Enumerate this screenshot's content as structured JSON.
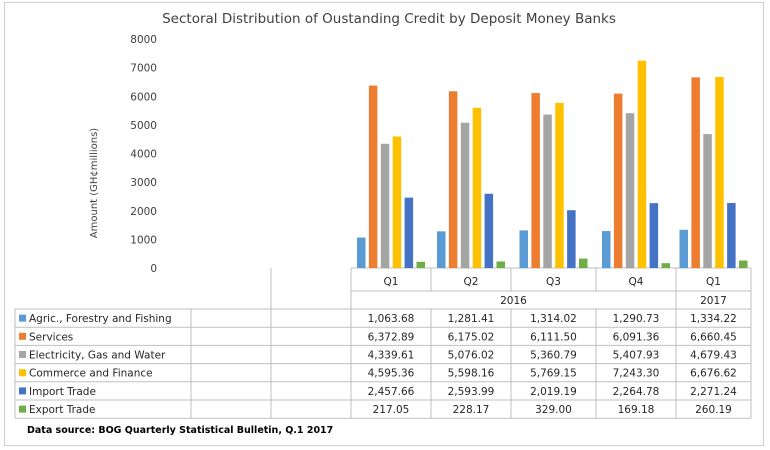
{
  "chart_data": {
    "type": "bar",
    "title": "Sectoral Distribution of Oustanding Credit by Deposit Money Banks",
    "ylabel": "Amount  (GH¢millions)",
    "ylim": [
      0,
      8000
    ],
    "yticks": [
      "0",
      "1000",
      "2000",
      "3000",
      "4000",
      "5000",
      "6000",
      "7000",
      "8000"
    ],
    "grid": false,
    "legend": "table-rows",
    "categories": [
      "Q1",
      "Q2",
      "Q3",
      "Q4",
      "Q1"
    ],
    "year_groups": [
      {
        "label": "2016",
        "span": 4
      },
      {
        "label": "2017",
        "span": 1
      }
    ],
    "series": [
      {
        "name": "Agric., Forestry and Fishing",
        "color": "#5b9bd5",
        "values": [
          1063.68,
          1281.41,
          1314.02,
          1290.73,
          1334.22
        ],
        "labels": [
          "1,063.68",
          "1,281.41",
          "1,314.02",
          "1,290.73",
          "1,334.22"
        ]
      },
      {
        "name": "Services",
        "color": "#ed7d31",
        "values": [
          6372.89,
          6175.02,
          6111.5,
          6091.36,
          6660.45
        ],
        "labels": [
          "6,372.89",
          "6,175.02",
          "6,111.50",
          "6,091.36",
          "6,660.45"
        ]
      },
      {
        "name": "Electricity, Gas and Water",
        "color": "#a5a5a5",
        "values": [
          4339.61,
          5076.02,
          5360.79,
          5407.93,
          4679.43
        ],
        "labels": [
          "4,339.61",
          "5,076.02",
          "5,360.79",
          "5,407.93",
          "4,679.43"
        ]
      },
      {
        "name": "Commerce and Finance",
        "color": "#ffc000",
        "values": [
          4595.36,
          5598.16,
          5769.15,
          7243.3,
          6676.62
        ],
        "labels": [
          "4,595.36",
          "5,598.16",
          "5,769.15",
          "7,243.30",
          "6,676.62"
        ]
      },
      {
        "name": "Import Trade",
        "color": "#4472c4",
        "values": [
          2457.66,
          2593.99,
          2019.19,
          2264.78,
          2271.24
        ],
        "labels": [
          "2,457.66",
          "2,593.99",
          "2,019.19",
          "2,264.78",
          "2,271.24"
        ]
      },
      {
        "name": "Export Trade",
        "color": "#70ad47",
        "values": [
          217.05,
          228.17,
          329.0,
          169.18,
          260.19
        ],
        "labels": [
          "217.05",
          "228.17",
          "329.00",
          "169.18",
          "260.19"
        ]
      }
    ]
  },
  "source_note": "Data source: BOG Quarterly Statistical Bulletin, Q.1 2017"
}
